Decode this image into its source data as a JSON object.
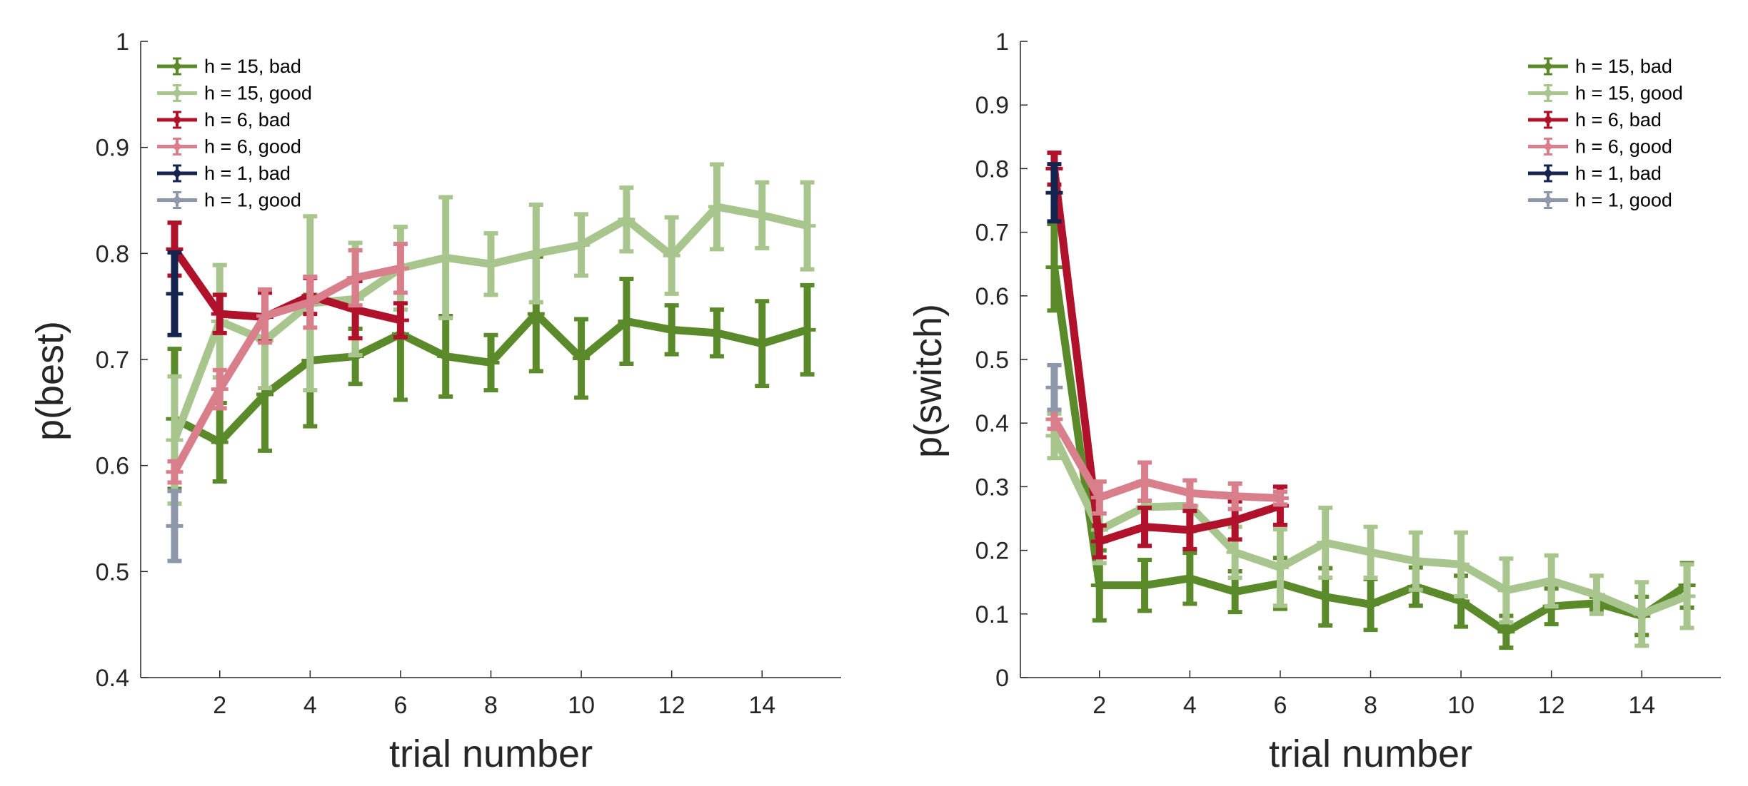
{
  "chart_data": [
    {
      "type": "line",
      "xlabel": "trial number",
      "ylabel": "p(best)",
      "xlim": [
        0.25,
        15.75
      ],
      "ylim": [
        0.4,
        1.0
      ],
      "xticks": [
        2,
        4,
        6,
        8,
        10,
        12,
        14
      ],
      "yticks": [
        0.4,
        0.5,
        0.6,
        0.7,
        0.8,
        0.9,
        1.0
      ],
      "ytick_labels": [
        "0.4",
        "0.5",
        "0.6",
        "0.7",
        "0.8",
        "0.9",
        "1"
      ],
      "legend_position": "top-left",
      "series": [
        {
          "name": "h = 15, bad",
          "color": "#5a8a29",
          "x": [
            1,
            2,
            3,
            4,
            5,
            6,
            7,
            8,
            9,
            10,
            11,
            12,
            13,
            14,
            15
          ],
          "y": [
            0.644,
            0.622,
            0.667,
            0.699,
            0.703,
            0.724,
            0.703,
            0.697,
            0.743,
            0.701,
            0.736,
            0.728,
            0.725,
            0.715,
            0.728
          ],
          "err": [
            0.066,
            0.037,
            0.053,
            0.062,
            0.026,
            0.062,
            0.038,
            0.026,
            0.054,
            0.037,
            0.04,
            0.023,
            0.022,
            0.04,
            0.042
          ]
        },
        {
          "name": "h = 15, good",
          "color": "#a8c58e",
          "x": [
            1,
            2,
            3,
            4,
            5,
            6,
            7,
            8,
            9,
            10,
            11,
            12,
            13,
            14,
            15
          ],
          "y": [
            0.624,
            0.736,
            0.718,
            0.753,
            0.757,
            0.786,
            0.796,
            0.79,
            0.8,
            0.808,
            0.832,
            0.798,
            0.844,
            0.836,
            0.826
          ],
          "err": [
            0.06,
            0.053,
            0.045,
            0.082,
            0.053,
            0.039,
            0.057,
            0.029,
            0.046,
            0.029,
            0.03,
            0.036,
            0.04,
            0.031,
            0.041
          ]
        },
        {
          "name": "h = 6, bad",
          "color": "#b0122b",
          "x": [
            1,
            2,
            3,
            4,
            5,
            6
          ],
          "y": [
            0.804,
            0.743,
            0.74,
            0.76,
            0.747,
            0.737
          ],
          "err": [
            0.025,
            0.018,
            0.023,
            0.017,
            0.027,
            0.016
          ]
        },
        {
          "name": "h = 6, good",
          "color": "#d97f8c",
          "x": [
            1,
            2,
            3,
            4,
            5,
            6
          ],
          "y": [
            0.594,
            0.672,
            0.741,
            0.754,
            0.777,
            0.786
          ],
          "err": [
            0.01,
            0.018,
            0.025,
            0.024,
            0.026,
            0.023
          ]
        },
        {
          "name": "h = 1, bad",
          "color": "#14244e",
          "x": [
            1
          ],
          "y": [
            0.762
          ],
          "err": [
            0.039
          ]
        },
        {
          "name": "h = 1, good",
          "color": "#8c97aa",
          "x": [
            1
          ],
          "y": [
            0.543
          ],
          "err": [
            0.033
          ]
        }
      ]
    },
    {
      "type": "line",
      "xlabel": "trial number",
      "ylabel": "p(switch)",
      "xlim": [
        0.25,
        15.75
      ],
      "ylim": [
        0,
        1.0
      ],
      "xticks": [
        2,
        4,
        6,
        8,
        10,
        12,
        14
      ],
      "yticks": [
        0,
        0.1,
        0.2,
        0.3,
        0.4,
        0.5,
        0.6,
        0.7,
        0.8,
        0.9,
        1.0
      ],
      "ytick_labels": [
        "0",
        "0.1",
        "0.2",
        "0.3",
        "0.4",
        "0.5",
        "0.6",
        "0.7",
        "0.8",
        "0.9",
        "1"
      ],
      "legend_position": "top-right",
      "series": [
        {
          "name": "h = 15, bad",
          "color": "#5a8a29",
          "x": [
            1,
            2,
            3,
            4,
            5,
            6,
            7,
            8,
            9,
            10,
            11,
            12,
            13,
            14,
            15
          ],
          "y": [
            0.645,
            0.145,
            0.145,
            0.156,
            0.135,
            0.148,
            0.127,
            0.115,
            0.143,
            0.12,
            0.072,
            0.112,
            0.117,
            0.097,
            0.145
          ],
          "err": [
            0.068,
            0.055,
            0.04,
            0.04,
            0.032,
            0.04,
            0.045,
            0.04,
            0.03,
            0.04,
            0.025,
            0.028,
            0.01,
            0.03,
            0.035
          ]
        },
        {
          "name": "h = 15, good",
          "color": "#a8c58e",
          "x": [
            1,
            2,
            3,
            4,
            5,
            6,
            7,
            8,
            9,
            10,
            11,
            12,
            13,
            14,
            15
          ],
          "y": [
            0.38,
            0.232,
            0.268,
            0.27,
            0.197,
            0.173,
            0.212,
            0.197,
            0.183,
            0.178,
            0.137,
            0.152,
            0.13,
            0.1,
            0.128
          ],
          "err": [
            0.035,
            0.052,
            0.035,
            0.04,
            0.04,
            0.06,
            0.055,
            0.04,
            0.045,
            0.05,
            0.05,
            0.04,
            0.03,
            0.05,
            0.05
          ]
        },
        {
          "name": "h = 6, bad",
          "color": "#b0122b",
          "x": [
            1,
            2,
            3,
            4,
            5,
            6
          ],
          "y": [
            0.8,
            0.214,
            0.237,
            0.232,
            0.247,
            0.27
          ],
          "err": [
            0.025,
            0.025,
            0.03,
            0.03,
            0.03,
            0.03
          ]
        },
        {
          "name": "h = 6, good",
          "color": "#d97f8c",
          "x": [
            1,
            2,
            3,
            4,
            5,
            6
          ],
          "y": [
            0.406,
            0.283,
            0.308,
            0.29,
            0.285,
            0.282
          ],
          "err": [
            0.015,
            0.025,
            0.03,
            0.02,
            0.02,
            0.01
          ]
        },
        {
          "name": "h = 1, bad",
          "color": "#14244e",
          "x": [
            1
          ],
          "y": [
            0.762
          ],
          "err": [
            0.045
          ]
        },
        {
          "name": "h = 1, good",
          "color": "#8c97aa",
          "x": [
            1
          ],
          "y": [
            0.456
          ],
          "err": [
            0.035
          ]
        }
      ]
    }
  ]
}
